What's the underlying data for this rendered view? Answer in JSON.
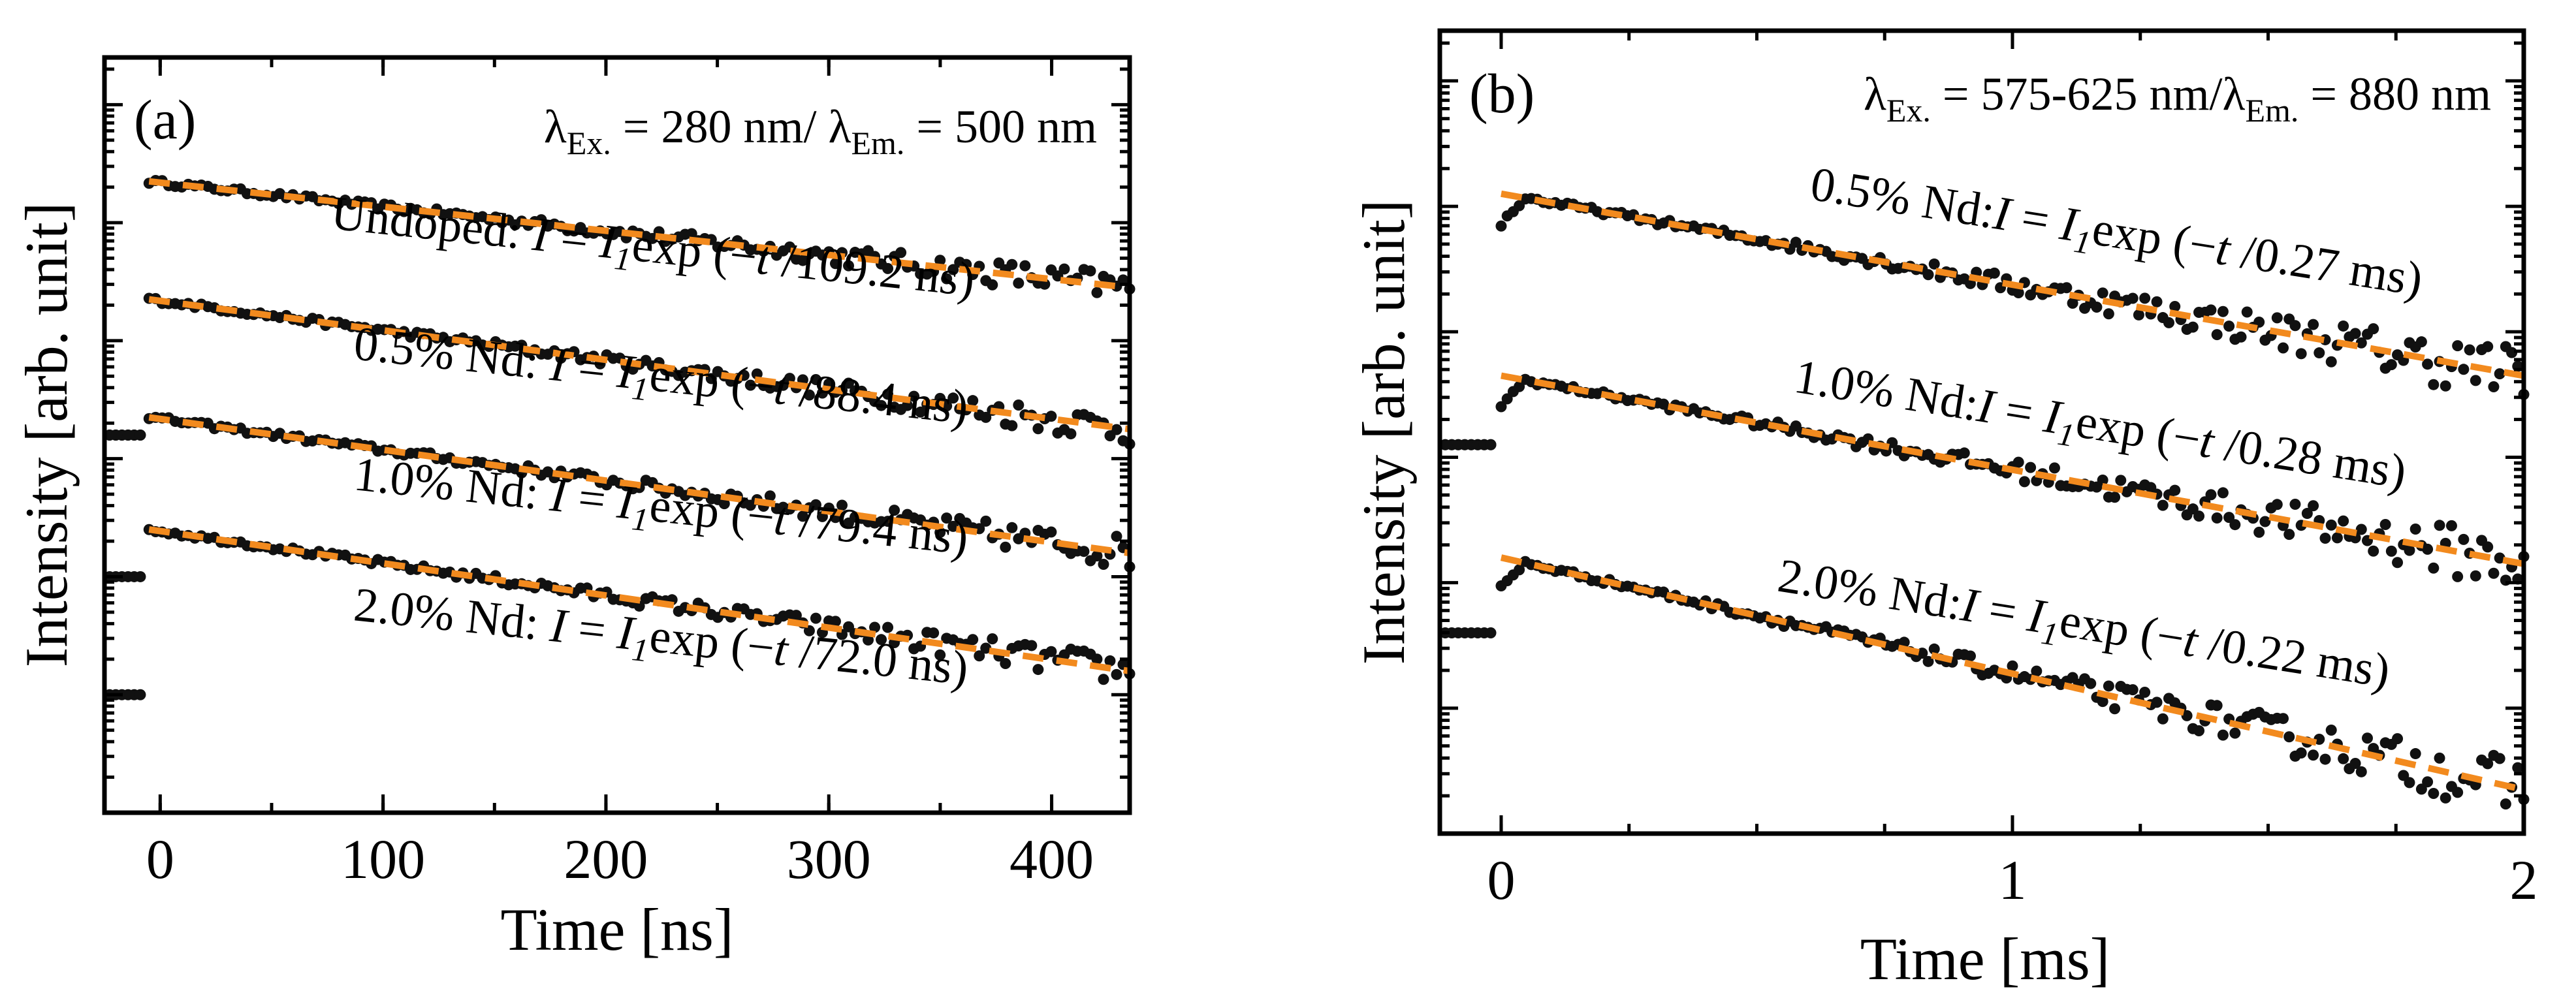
{
  "chart_data": [
    {
      "type": "scatter",
      "panel": "(a)",
      "annotation": {
        "lambda_ex": "280 nm",
        "lambda_em": "500 nm"
      },
      "xlabel": "Time [ns]",
      "ylabel": "Intensity [arb. unit]",
      "xlim": [
        -25,
        435
      ],
      "ylim": [
        0,
        6.4
      ],
      "yscale": "log (arb.)",
      "xticks": [
        0,
        100,
        200,
        300,
        400
      ],
      "xtick_labels": [
        "0",
        "100",
        "200",
        "300",
        "400"
      ],
      "series": [
        {
          "name": "Undoped",
          "doping": "Undoped:",
          "tau": "109.2 ns",
          "start": 5.35,
          "end": 4.45,
          "pre": 3.2
        },
        {
          "name": "0.5% Nd",
          "doping": "0.5% Nd:",
          "tau": "88.4 ns",
          "start": 4.35,
          "end": 3.25,
          "pre": 3.2
        },
        {
          "name": "1.0% Nd",
          "doping": "1.0% Nd:",
          "tau": "79.4 ns",
          "start": 3.35,
          "end": 2.2,
          "pre": 2.0
        },
        {
          "name": "2.0% Nd",
          "doping": "2.0% Nd:",
          "tau": "72.0 ns",
          "start": 2.4,
          "end": 1.2,
          "pre": 1.0
        }
      ],
      "fit_formula": {
        "prefix": "I = I",
        "sub": "1",
        "body": "exp (−t /"
      }
    },
    {
      "type": "scatter",
      "panel": "(b)",
      "annotation": {
        "lambda_ex": "575-625 nm",
        "lambda_em": "880 nm"
      },
      "xlabel": "Time [ms]",
      "ylabel": "Intensity [arb. unit]",
      "xlim": [
        -0.12,
        2.0
      ],
      "ylim": [
        0,
        6.4
      ],
      "yscale": "log (arb.)",
      "xticks": [
        0,
        1,
        2
      ],
      "xtick_labels": [
        "0",
        "1",
        "2"
      ],
      "series": [
        {
          "name": "0.5% Nd",
          "doping": "0.5% Nd:",
          "tau": "0.27 ms",
          "start": 5.1,
          "end": 3.65,
          "pre": 3.1
        },
        {
          "name": "1.0% Nd",
          "doping": "1.0% Nd:",
          "tau": "0.28 ms",
          "start": 3.65,
          "end": 2.15,
          "pre": 3.1
        },
        {
          "name": "2.0% Nd",
          "doping": "2.0% Nd:",
          "tau": "0.22 ms",
          "start": 2.2,
          "end": 0.35,
          "pre": 1.6
        }
      ],
      "fit_formula": {
        "prefix": "I = I",
        "sub": "1",
        "body": "exp (−t /"
      }
    }
  ]
}
